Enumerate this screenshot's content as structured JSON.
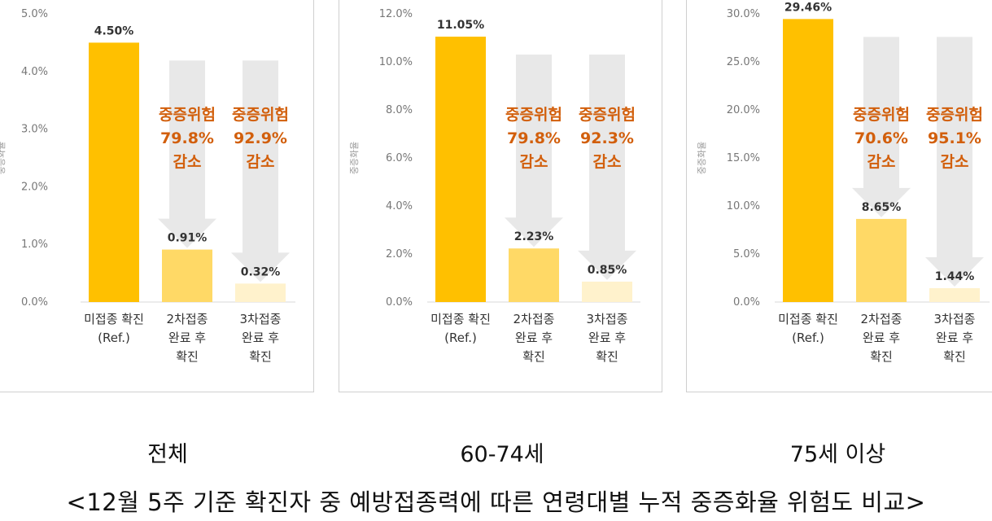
{
  "colors": {
    "ref_bar": "#FFC000",
    "second_dose_bar": "#FFD966",
    "third_dose_bar": "#FFF2CC",
    "arrow": "#E8E8E8",
    "reduction_text": "#D25F0C",
    "axis_text": "#777777",
    "label_text": "#333333"
  },
  "chart_data": [
    {
      "type": "bar",
      "caption": "전체",
      "ylabel": "중증화율",
      "ylim": [
        0,
        5
      ],
      "yticks": [
        "0.0%",
        "1.0%",
        "2.0%",
        "3.0%",
        "4.0%",
        "5.0%"
      ],
      "categories": [
        "미접종 확진 (Ref.)",
        "2차접종 완료 후 확진",
        "3차접종 완료 후 확진"
      ],
      "category_lines": [
        [
          "미접종 확진",
          "(Ref.)"
        ],
        [
          "2차접종",
          "완료 후",
          "확진"
        ],
        [
          "3차접종",
          "완료 후",
          "확진"
        ]
      ],
      "values": [
        4.5,
        0.91,
        0.32
      ],
      "value_labels": [
        "4.50%",
        "0.91%",
        "0.32%"
      ],
      "reductions": [
        {
          "line1": "중증위험",
          "line2": "79.8%",
          "line3": "감소"
        },
        {
          "line1": "중증위험",
          "line2": "92.9%",
          "line3": "감소"
        }
      ]
    },
    {
      "type": "bar",
      "caption": "60-74세",
      "ylabel": "중증화율",
      "ylim": [
        0,
        12
      ],
      "yticks": [
        "0.0%",
        "2.0%",
        "4.0%",
        "6.0%",
        "8.0%",
        "10.0%",
        "12.0%"
      ],
      "categories": [
        "미접종 확진 (Ref.)",
        "2차접종 완료 후 확진",
        "3차접종 완료 후 확진"
      ],
      "category_lines": [
        [
          "미접종 확진",
          "(Ref.)"
        ],
        [
          "2차접종",
          "완료 후",
          "확진"
        ],
        [
          "3차접종",
          "완료 후",
          "확진"
        ]
      ],
      "values": [
        11.05,
        2.23,
        0.85
      ],
      "value_labels": [
        "11.05%",
        "2.23%",
        "0.85%"
      ],
      "reductions": [
        {
          "line1": "중증위험",
          "line2": "79.8%",
          "line3": "감소"
        },
        {
          "line1": "중증위험",
          "line2": "92.3%",
          "line3": "감소"
        }
      ]
    },
    {
      "type": "bar",
      "caption": "75세 이상",
      "ylabel": "중증화율",
      "ylim": [
        0,
        30
      ],
      "yticks": [
        "0.0%",
        "5.0%",
        "10.0%",
        "15.0%",
        "20.0%",
        "25.0%",
        "30.0%"
      ],
      "categories": [
        "미접종 확진 (Ref.)",
        "2차접종 완료 후 확진",
        "3차접종 완료 후 확진"
      ],
      "category_lines": [
        [
          "미접종 확진",
          "(Ref.)"
        ],
        [
          "2차접종",
          "완료 후",
          "확진"
        ],
        [
          "3차접종",
          "완료 후",
          "확진"
        ]
      ],
      "values": [
        29.46,
        8.65,
        1.44
      ],
      "value_labels": [
        "29.46%",
        "8.65%",
        "1.44%"
      ],
      "reductions": [
        {
          "line1": "중증위험",
          "line2": "70.6%",
          "line3": "감소"
        },
        {
          "line1": "중증위험",
          "line2": "95.1%",
          "line3": "감소"
        }
      ]
    }
  ],
  "footer": "<12월 5주 기준 확진자 중 예방접종력에 따른 연령대별 누적 중증화율 위험도 비교>"
}
